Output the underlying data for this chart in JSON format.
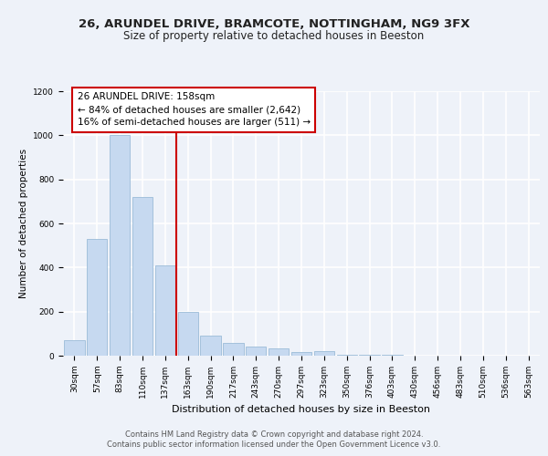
{
  "title1": "26, ARUNDEL DRIVE, BRAMCOTE, NOTTINGHAM, NG9 3FX",
  "title2": "Size of property relative to detached houses in Beeston",
  "xlabel": "Distribution of detached houses by size in Beeston",
  "ylabel": "Number of detached properties",
  "categories": [
    "30sqm",
    "57sqm",
    "83sqm",
    "110sqm",
    "137sqm",
    "163sqm",
    "190sqm",
    "217sqm",
    "243sqm",
    "270sqm",
    "297sqm",
    "323sqm",
    "350sqm",
    "376sqm",
    "403sqm",
    "430sqm",
    "456sqm",
    "483sqm",
    "510sqm",
    "536sqm",
    "563sqm"
  ],
  "values": [
    70,
    530,
    1000,
    720,
    410,
    200,
    90,
    58,
    40,
    35,
    15,
    20,
    5,
    5,
    3,
    2,
    1,
    1,
    1,
    1,
    1
  ],
  "bar_color": "#c6d9f0",
  "bar_edge_color": "#9bbcd8",
  "vline_color": "#cc0000",
  "vline_position": 5,
  "annotation_lines": [
    "26 ARUNDEL DRIVE: 158sqm",
    "← 84% of detached houses are smaller (2,642)",
    "16% of semi-detached houses are larger (511) →"
  ],
  "annotation_box_color": "#cc0000",
  "ylim": [
    0,
    1200
  ],
  "yticks": [
    0,
    200,
    400,
    600,
    800,
    1000,
    1200
  ],
  "footer": "Contains HM Land Registry data © Crown copyright and database right 2024.\nContains public sector information licensed under the Open Government Licence v3.0.",
  "bg_color": "#eef2f9",
  "grid_color": "#ffffff",
  "title1_fontsize": 9.5,
  "title2_fontsize": 8.5,
  "xlabel_fontsize": 8,
  "ylabel_fontsize": 7.5,
  "tick_fontsize": 6.5,
  "annotation_fontsize": 7.5,
  "footer_fontsize": 6
}
